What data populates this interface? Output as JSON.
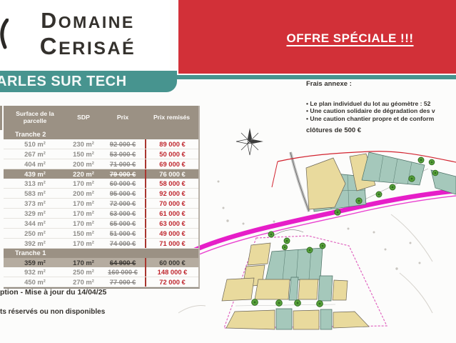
{
  "brand": {
    "name_line1": "Domaine",
    "name_line2": "Cerisaé",
    "location": "ARLES SUR TECH"
  },
  "offer": {
    "label": "OFFRE SPÉCIALE !!!"
  },
  "fees": {
    "title": "Frais annexe :",
    "items": [
      "Le plan individuel du lot au géomètre : 52",
      "Une caution solidaire de dégradation des v",
      "Une caution chantier propre et de conform"
    ],
    "footnote": "clôtures de 500 €"
  },
  "table": {
    "headers": {
      "surface": "Surface de la parcelle",
      "sdp": "SDP",
      "prix": "Prix",
      "remise": "Prix remisés"
    },
    "sections": [
      {
        "label": "Tranche 2",
        "rows": [
          {
            "surface": "510 m²",
            "sdp": "230 m²",
            "prix": "92 000 €",
            "remise": "89 000 €",
            "highlight": "none"
          },
          {
            "surface": "267 m²",
            "sdp": "150 m²",
            "prix": "53 000 €",
            "remise": "50 000 €",
            "highlight": "none"
          },
          {
            "surface": "404 m²",
            "sdp": "200 m²",
            "prix": "71 000 €",
            "remise": "69 000 €",
            "highlight": "none"
          },
          {
            "surface": "439 m²",
            "sdp": "220 m²",
            "prix": "79 000 €",
            "remise": "76 000 €",
            "highlight": "dark"
          },
          {
            "surface": "313 m²",
            "sdp": "170 m²",
            "prix": "60 000 €",
            "remise": "58 000 €",
            "highlight": "none"
          },
          {
            "surface": "583 m²",
            "sdp": "200 m²",
            "prix": "95 000 €",
            "remise": "92 000 €",
            "highlight": "none"
          },
          {
            "surface": "373 m²",
            "sdp": "170 m²",
            "prix": "72 000 €",
            "remise": "70 000 €",
            "highlight": "none"
          },
          {
            "surface": "329 m²",
            "sdp": "170 m²",
            "prix": "63 000 €",
            "remise": "61 000 €",
            "highlight": "none"
          },
          {
            "surface": "344 m²",
            "sdp": "170 m²",
            "prix": "65 000 €",
            "remise": "63 000 €",
            "highlight": "none"
          },
          {
            "surface": "250 m²",
            "sdp": "150 m²",
            "prix": "51 000 €",
            "remise": "49 000 €",
            "highlight": "none"
          },
          {
            "surface": "392 m²",
            "sdp": "170 m²",
            "prix": "74 000 €",
            "remise": "71 000 €",
            "highlight": "none"
          }
        ]
      },
      {
        "label": "Tranche 1",
        "rows": [
          {
            "surface": "359 m²",
            "sdp": "170 m²",
            "prix": "64 900 €",
            "remise": "60 000 €",
            "highlight": "light"
          },
          {
            "surface": "932 m²",
            "sdp": "250 m²",
            "prix": "160 000 €",
            "remise": "148 000 €",
            "highlight": "none"
          },
          {
            "surface": "450 m²",
            "sdp": "270 m²",
            "prix": "77 000 €",
            "remise": "72 000 €",
            "highlight": "none"
          }
        ]
      }
    ]
  },
  "footer": {
    "update_note": "ption - Mise à jour du 14/04/25",
    "availability_note": "ts réservés ou non disponibles"
  },
  "colors": {
    "teal": "#47948f",
    "red_banner": "#d23038",
    "taupe": "#9b9184",
    "taupe_light": "#b5aca0",
    "price_red": "#bf272e",
    "value_gray": "#8f8d89",
    "charcoal": "#34312d",
    "map_beige": "#e9da9d",
    "map_teal": "#a5c8bb",
    "map_road": "#e61ec8",
    "map_boundary": "#e066c0",
    "map_outline_red": "#d22430",
    "map_tree": "#57a03a",
    "map_tree_dark": "#2f6b20"
  }
}
